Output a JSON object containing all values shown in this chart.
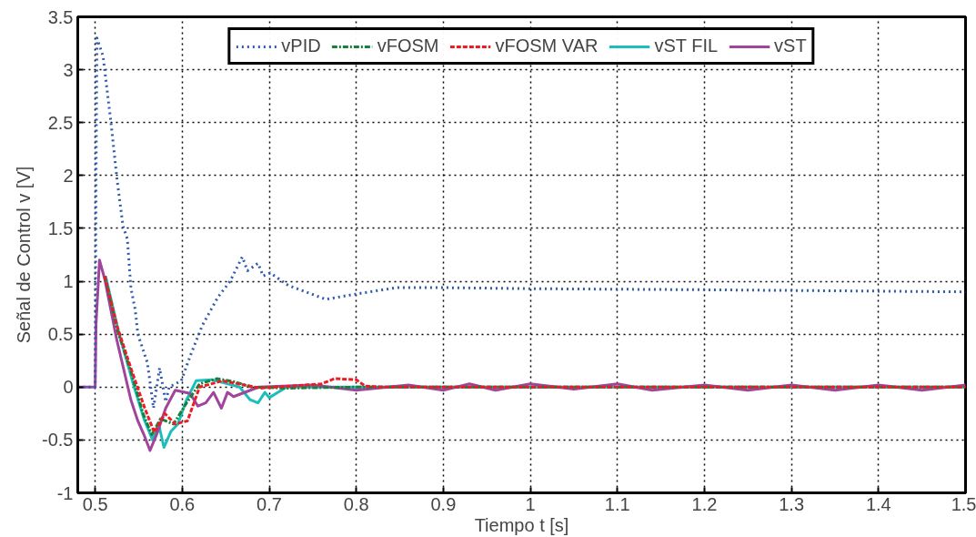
{
  "chart_data": {
    "type": "line",
    "xlabel": "Tiempo t [s]",
    "ylabel": "Señal de Control v [V]",
    "xlim": [
      0.48,
      1.5
    ],
    "ylim": [
      -1,
      3.5
    ],
    "xticks": [
      0.5,
      0.6,
      0.7,
      0.8,
      0.9,
      1,
      1.1,
      1.2,
      1.3,
      1.4,
      1.5
    ],
    "yticks": [
      -1,
      -0.5,
      0,
      0.5,
      1,
      1.5,
      2,
      2.5,
      3,
      3.5
    ],
    "grid": true,
    "legend": "top",
    "series": [
      {
        "name": "vPID",
        "color": "#2e5bad",
        "line_style": "dotted",
        "x": [
          0.48,
          0.5,
          0.501,
          0.502,
          0.509,
          0.518,
          0.525,
          0.532,
          0.537,
          0.541,
          0.546,
          0.549,
          0.56,
          0.567,
          0.574,
          0.581,
          0.585,
          0.599,
          0.609,
          0.623,
          0.641,
          0.655,
          0.669,
          0.675,
          0.687,
          0.693,
          0.701,
          0.722,
          0.765,
          0.8,
          0.846,
          0.9,
          1.0,
          1.2,
          1.5
        ],
        "values": [
          0,
          0,
          2.0,
          3.3,
          3.13,
          2.51,
          1.97,
          1.52,
          1.4,
          0.94,
          0.73,
          0.5,
          0.23,
          -0.2,
          0.18,
          -0.14,
          0,
          0.06,
          0.29,
          0.58,
          0.85,
          1.0,
          1.23,
          1.1,
          1.17,
          1.05,
          1.08,
          0.96,
          0.83,
          0.88,
          0.94,
          0.94,
          0.93,
          0.92,
          0.9
        ]
      },
      {
        "name": "vFOSM",
        "color": "#17803a",
        "line_style": "dashdot",
        "x": [
          0.511,
          0.525,
          0.541,
          0.555,
          0.565,
          0.575,
          0.59,
          0.605,
          0.62,
          0.64,
          0.66,
          0.68,
          0.72,
          0.8,
          1.5
        ],
        "values": [
          1.05,
          0.55,
          0.15,
          -0.25,
          -0.45,
          -0.3,
          -0.35,
          -0.15,
          0.03,
          0.08,
          0.05,
          0.0,
          -0.01,
          0,
          0
        ]
      },
      {
        "name": "vFOSM VAR",
        "color": "#ed1c24",
        "line_style": "dashed",
        "x": [
          0.511,
          0.525,
          0.541,
          0.557,
          0.568,
          0.58,
          0.592,
          0.606,
          0.62,
          0.646,
          0.69,
          0.76,
          0.775,
          0.8,
          0.81,
          0.83,
          1.5
        ],
        "values": [
          1.05,
          0.58,
          0.18,
          -0.2,
          -0.43,
          -0.25,
          -0.35,
          -0.32,
          0,
          0.06,
          -0.01,
          0.03,
          0.08,
          0.07,
          0.01,
          0,
          0
        ]
      },
      {
        "name": "vST FIL",
        "color": "#1cbdbd",
        "line_style": "solid",
        "x": [
          0.512,
          0.527,
          0.543,
          0.556,
          0.566,
          0.573,
          0.579,
          0.587,
          0.595,
          0.605,
          0.616,
          0.634,
          0.666,
          0.678,
          0.687,
          0.695,
          0.7,
          0.72,
          1.5
        ],
        "values": [
          1.05,
          0.52,
          0.05,
          -0.3,
          -0.5,
          -0.35,
          -0.57,
          -0.42,
          -0.35,
          -0.12,
          0.06,
          0.07,
          0,
          -0.12,
          -0.15,
          -0.05,
          -0.1,
          0,
          0
        ]
      },
      {
        "name": "vST",
        "color": "#a0449c",
        "line_style": "solid",
        "x": [
          0.48,
          0.5,
          0.501,
          0.505,
          0.511,
          0.525,
          0.541,
          0.549,
          0.556,
          0.563,
          0.571,
          0.581,
          0.592,
          0.609,
          0.618,
          0.627,
          0.636,
          0.645,
          0.652,
          0.659,
          0.688,
          0.75,
          0.8,
          0.86,
          0.9,
          0.93,
          0.96,
          1.0,
          1.05,
          1.1,
          1.14,
          1.2,
          1.25,
          1.3,
          1.35,
          1.4,
          1.45,
          1.5
        ],
        "values": [
          0,
          0,
          0.6,
          1.2,
          1.02,
          0.44,
          -0.12,
          -0.32,
          -0.45,
          -0.6,
          -0.44,
          -0.2,
          -0.03,
          -0.06,
          -0.18,
          -0.15,
          -0.05,
          -0.2,
          -0.05,
          -0.09,
          0,
          0.02,
          -0.03,
          0.02,
          -0.03,
          0.03,
          -0.03,
          0.03,
          -0.02,
          0.03,
          -0.03,
          0.02,
          -0.03,
          0.02,
          -0.03,
          0.02,
          -0.03,
          0.02
        ]
      }
    ]
  }
}
